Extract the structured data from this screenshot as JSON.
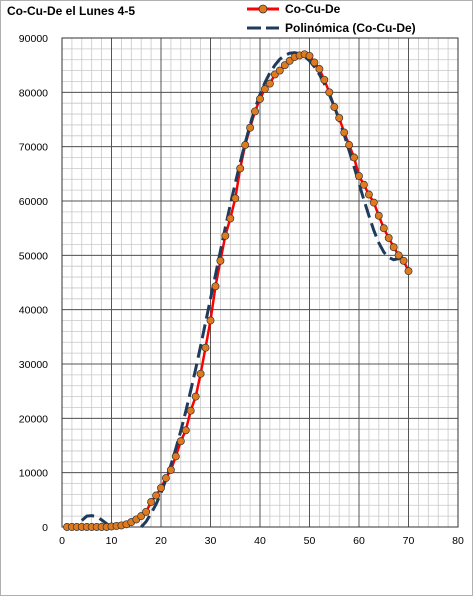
{
  "chart_data": {
    "type": "line",
    "title": "Co-Cu-De el Lunes 4-5",
    "xlabel": "",
    "ylabel": "",
    "xlim": [
      0,
      80
    ],
    "ylim": [
      0,
      90000
    ],
    "x_ticks": [
      0,
      10,
      20,
      30,
      40,
      50,
      60,
      70,
      80
    ],
    "y_ticks": [
      0,
      10000,
      20000,
      30000,
      40000,
      50000,
      60000,
      70000,
      80000,
      90000
    ],
    "grid": true,
    "legend_position": "top-right",
    "series": [
      {
        "name": "Co-Cu-De",
        "style": "line-with-markers",
        "line_color": "#ff0000",
        "marker_color": "#e07a1f",
        "marker_edge": "#333333",
        "points": [
          [
            1,
            0
          ],
          [
            2,
            0
          ],
          [
            3,
            0
          ],
          [
            4,
            0
          ],
          [
            5,
            0
          ],
          [
            6,
            0
          ],
          [
            7,
            0
          ],
          [
            8,
            0
          ],
          [
            9,
            0
          ],
          [
            10,
            100
          ],
          [
            11,
            200
          ],
          [
            12,
            300
          ],
          [
            13,
            500
          ],
          [
            14,
            900
          ],
          [
            15,
            1400
          ],
          [
            16,
            2000
          ],
          [
            17,
            2800
          ],
          [
            18,
            4600
          ],
          [
            19,
            5800
          ],
          [
            20,
            7200
          ],
          [
            21,
            9000
          ],
          [
            22,
            10500
          ],
          [
            23,
            13000
          ],
          [
            24,
            15800
          ],
          [
            25,
            17800
          ],
          [
            26,
            21400
          ],
          [
            27,
            24000
          ],
          [
            28,
            28200
          ],
          [
            29,
            33000
          ],
          [
            30,
            38000
          ],
          [
            31,
            44300
          ],
          [
            32,
            49000
          ],
          [
            33,
            53600
          ],
          [
            34,
            56800
          ],
          [
            35,
            60500
          ],
          [
            36,
            66000
          ],
          [
            37,
            70300
          ],
          [
            38,
            73500
          ],
          [
            39,
            76500
          ],
          [
            40,
            78800
          ],
          [
            41,
            80600
          ],
          [
            42,
            81600
          ],
          [
            43,
            83300
          ],
          [
            44,
            84000
          ],
          [
            45,
            85000
          ],
          [
            46,
            85800
          ],
          [
            47,
            86500
          ],
          [
            48,
            86800
          ],
          [
            49,
            87000
          ],
          [
            50,
            86700
          ],
          [
            51,
            85500
          ],
          [
            52,
            84300
          ],
          [
            53,
            82300
          ],
          [
            54,
            80000
          ],
          [
            55,
            77300
          ],
          [
            56,
            75300
          ],
          [
            57,
            72600
          ],
          [
            58,
            70300
          ],
          [
            59,
            68000
          ],
          [
            60,
            64600
          ],
          [
            61,
            63000
          ],
          [
            62,
            61200
          ],
          [
            63,
            59700
          ],
          [
            64,
            57300
          ],
          [
            65,
            55000
          ],
          [
            66,
            53200
          ],
          [
            67,
            51500
          ],
          [
            68,
            50000
          ],
          [
            69,
            49000
          ],
          [
            70,
            47100
          ]
        ]
      },
      {
        "name": "Polinómica (Co-Cu-De)",
        "style": "dashed-trendline",
        "line_color": "#1f3b5c",
        "points": [
          [
            4,
            1200
          ],
          [
            5,
            2000
          ],
          [
            6,
            2100
          ],
          [
            7,
            1900
          ],
          [
            8,
            1300
          ],
          [
            9,
            600
          ],
          [
            10,
            0
          ],
          [
            16,
            0
          ],
          [
            17,
            1000
          ],
          [
            18,
            2500
          ],
          [
            19,
            4200
          ],
          [
            20,
            6300
          ],
          [
            21,
            8700
          ],
          [
            22,
            11400
          ],
          [
            23,
            14400
          ],
          [
            24,
            17700
          ],
          [
            25,
            21300
          ],
          [
            26,
            25100
          ],
          [
            27,
            29100
          ],
          [
            28,
            33300
          ],
          [
            29,
            37600
          ],
          [
            30,
            42000
          ],
          [
            31,
            46400
          ],
          [
            32,
            50800
          ],
          [
            33,
            55100
          ],
          [
            34,
            59300
          ],
          [
            35,
            63300
          ],
          [
            36,
            67100
          ],
          [
            37,
            70700
          ],
          [
            38,
            74000
          ],
          [
            39,
            77000
          ],
          [
            40,
            79600
          ],
          [
            41,
            81800
          ],
          [
            42,
            83600
          ],
          [
            43,
            85000
          ],
          [
            44,
            86100
          ],
          [
            45,
            86800
          ],
          [
            46,
            87200
          ],
          [
            47,
            87300
          ],
          [
            48,
            87100
          ],
          [
            49,
            86600
          ],
          [
            50,
            85800
          ],
          [
            51,
            84700
          ],
          [
            52,
            83300
          ],
          [
            53,
            81600
          ],
          [
            54,
            79600
          ],
          [
            55,
            77400
          ],
          [
            56,
            74900
          ],
          [
            57,
            72200
          ],
          [
            58,
            69300
          ],
          [
            59,
            66300
          ],
          [
            60,
            63200
          ],
          [
            61,
            60200
          ],
          [
            62,
            57300
          ],
          [
            63,
            54600
          ],
          [
            64,
            52300
          ],
          [
            65,
            50600
          ],
          [
            66,
            49600
          ],
          [
            67,
            49200
          ],
          [
            68,
            49400
          ],
          [
            69,
            49600
          ],
          [
            70,
            49500
          ]
        ]
      }
    ]
  }
}
